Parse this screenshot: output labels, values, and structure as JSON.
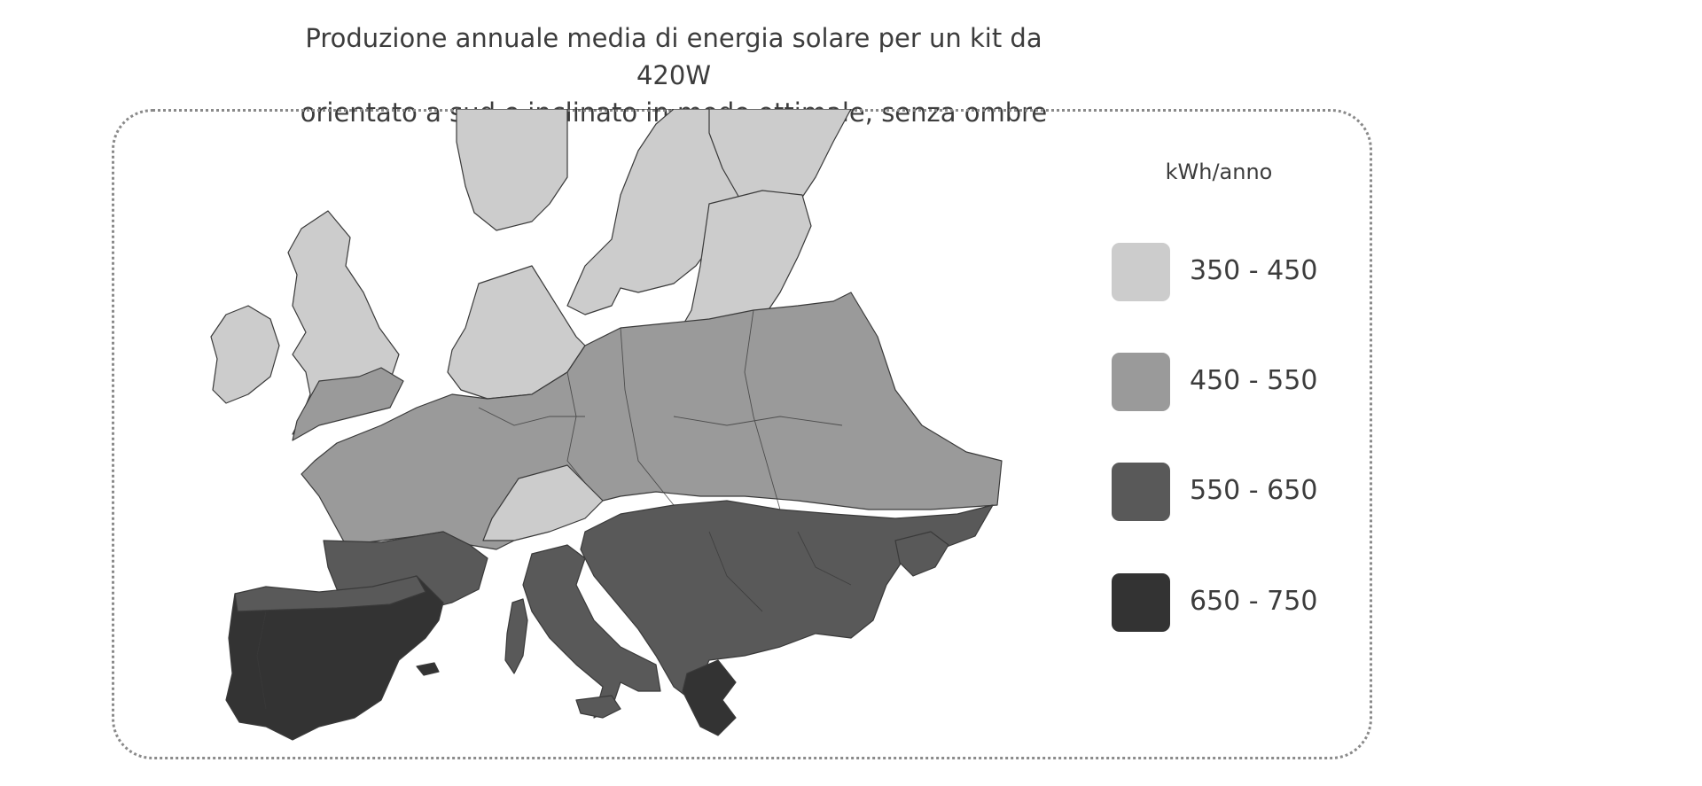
{
  "title": {
    "line1": "Produzione annuale media di energia solare per un kit da 420W",
    "line2": "orientato a sud e inclinato in modo ottimale, senza ombre"
  },
  "legend": {
    "title": "kWh/anno",
    "items": [
      {
        "label": "350 - 450",
        "color": "#cccccc"
      },
      {
        "label": "450 - 550",
        "color": "#9a9a9a"
      },
      {
        "label": "550 - 650",
        "color": "#595959"
      },
      {
        "label": "650 - 750",
        "color": "#333333"
      }
    ]
  }
}
